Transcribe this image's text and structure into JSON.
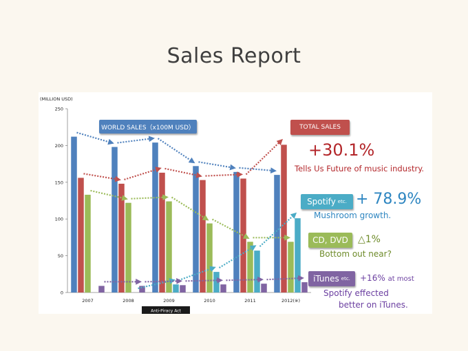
{
  "page": {
    "title": "Sales Report"
  },
  "chart_data": {
    "type": "bar",
    "ylabel": "(MILLION USD)",
    "ylim": [
      0,
      250
    ],
    "yticks": [
      0,
      50,
      100,
      150,
      200,
      250
    ],
    "categories": [
      "2007",
      "2008",
      "2009",
      "2010",
      "2011",
      "2012(※)"
    ],
    "series": [
      {
        "name": "WORLD SALES",
        "color": "#4f81bd",
        "values": [
          212,
          198,
          204,
          172,
          164,
          160
        ]
      },
      {
        "name": "TOTAL SALES",
        "color": "#c0504d",
        "values": [
          156,
          148,
          163,
          153,
          155,
          201
        ]
      },
      {
        "name": "CD, DVD",
        "color": "#9bbb59",
        "values": [
          133,
          122,
          124,
          94,
          69,
          69
        ]
      },
      {
        "name": "Spotify",
        "color": "#4bacc6",
        "values": [
          0,
          0,
          11,
          28,
          57,
          101
        ]
      },
      {
        "name": "iTunes",
        "color": "#8064a2",
        "values": [
          9,
          9,
          10,
          11,
          12,
          14
        ]
      }
    ],
    "annotation": "Anti-Piracy Act"
  },
  "callouts": {
    "world_sales": "WORLD SALES（x100M USD）",
    "total_sales": "TOTAL SALES",
    "total_pct": "+30.1%",
    "total_note": "Tells Us Future of music industry.",
    "spotify": "Spotify",
    "spotify_small": "etc.",
    "spotify_pct": "+ 78.9%",
    "spotify_note": "Mushroom growth.",
    "cd": "CD, DVD",
    "cd_pct": "△1%",
    "cd_note": "Bottom out near?",
    "itunes": "iTunes",
    "itunes_small": "etc.",
    "itunes_pct": "+16%",
    "itunes_pct_suffix": "at most",
    "itunes_note1": "Spotify effected",
    "itunes_note2": "better on iTunes."
  },
  "colors": {
    "world": "#4f81bd",
    "total": "#c0504d",
    "cd": "#9bbb59",
    "spotify": "#4bacc6",
    "itunes": "#8064a2",
    "total_text": "#b3262a",
    "spotify_text": "#2e86c1",
    "cd_text": "#6e8b2a",
    "itunes_text": "#6b3fa0"
  }
}
